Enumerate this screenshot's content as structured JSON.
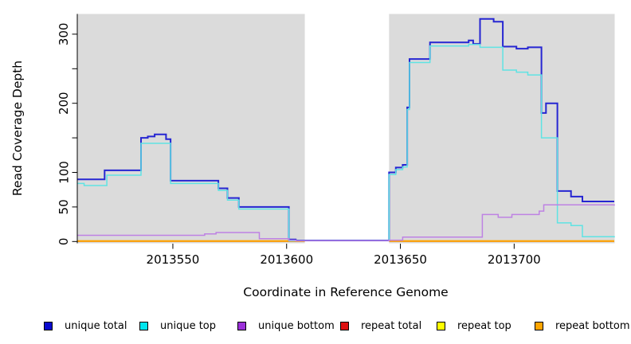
{
  "figure": {
    "background": "#ffffff",
    "plot_background": "#dbdbdb",
    "axis_color": "#000000"
  },
  "chart_data": {
    "type": "line",
    "subtype": "step-after-coverage-plot",
    "title": "",
    "xlabel": "Coordinate in Reference Genome",
    "ylabel": "Read Coverage Depth",
    "xlim": [
      2013508,
      2013744
    ],
    "ylim": [
      0,
      322
    ],
    "x_ticks": [
      2013550,
      2013600,
      2013650,
      2013700
    ],
    "x_tick_labels": [
      "2013550",
      "2013600",
      "2013650",
      "2013700"
    ],
    "y_ticks": [
      0,
      50,
      100,
      150,
      200,
      250,
      300
    ],
    "y_tick_labels": [
      "0",
      "50",
      "100",
      "",
      "200",
      "",
      "300"
    ],
    "grid": "off",
    "gap_region": {
      "start": 2013608,
      "end": 2013645,
      "color": "#ffffff"
    },
    "legend_position": "bottom",
    "series": [
      {
        "name": "unique total",
        "color": "#2626D2",
        "legend_color": "#0A0ACF",
        "line_width": 2,
        "points": [
          [
            2013508,
            90
          ],
          [
            2013520,
            103
          ],
          [
            2013536,
            150
          ],
          [
            2013539,
            152
          ],
          [
            2013542,
            155
          ],
          [
            2013547,
            148
          ],
          [
            2013549,
            88
          ],
          [
            2013570,
            77
          ],
          [
            2013574,
            63
          ],
          [
            2013579,
            50
          ],
          [
            2013601,
            3
          ],
          [
            2013604,
            1.5
          ],
          [
            2013645,
            100
          ],
          [
            2013648,
            107
          ],
          [
            2013651,
            111
          ],
          [
            2013653,
            194
          ],
          [
            2013654,
            264
          ],
          [
            2013663,
            288
          ],
          [
            2013680,
            291
          ],
          [
            2013682,
            286
          ],
          [
            2013685,
            322
          ],
          [
            2013691,
            318
          ],
          [
            2013695,
            282
          ],
          [
            2013701,
            279
          ],
          [
            2013706,
            281
          ],
          [
            2013712,
            186
          ],
          [
            2013714,
            200
          ],
          [
            2013719,
            73
          ],
          [
            2013725,
            65
          ],
          [
            2013730,
            58
          ],
          [
            2013744,
            58
          ]
        ]
      },
      {
        "name": "unique top",
        "color": "#5FE3E3",
        "legend_color": "#00E5EE",
        "line_width": 1.5,
        "points": [
          [
            2013508,
            84
          ],
          [
            2013511,
            81
          ],
          [
            2013521,
            96
          ],
          [
            2013536,
            142
          ],
          [
            2013549,
            84
          ],
          [
            2013570,
            74
          ],
          [
            2013574,
            60
          ],
          [
            2013579,
            47
          ],
          [
            2013601,
            1
          ],
          [
            2013645,
            97
          ],
          [
            2013648,
            104
          ],
          [
            2013651,
            108
          ],
          [
            2013653,
            191
          ],
          [
            2013654,
            259
          ],
          [
            2013663,
            283
          ],
          [
            2013680,
            285
          ],
          [
            2013685,
            281
          ],
          [
            2013695,
            248
          ],
          [
            2013701,
            245
          ],
          [
            2013706,
            241
          ],
          [
            2013712,
            150
          ],
          [
            2013719,
            27
          ],
          [
            2013725,
            23
          ],
          [
            2013730,
            7
          ],
          [
            2013744,
            6
          ]
        ]
      },
      {
        "name": "unique bottom",
        "color": "#BE82E3",
        "legend_color": "#9B30D9",
        "line_width": 1.5,
        "points": [
          [
            2013508,
            9
          ],
          [
            2013564,
            11
          ],
          [
            2013569,
            13
          ],
          [
            2013588,
            4
          ],
          [
            2013601,
            2
          ],
          [
            2013604,
            1
          ],
          [
            2013645,
            2
          ],
          [
            2013651,
            6.5
          ],
          [
            2013686,
            39
          ],
          [
            2013693,
            35
          ],
          [
            2013699,
            39
          ],
          [
            2013711,
            44
          ],
          [
            2013713,
            53
          ],
          [
            2013744,
            52
          ]
        ]
      },
      {
        "name": "repeat total",
        "color": "#DD1111",
        "legend_color": "#DD1111",
        "line_width": 1.5,
        "points": [
          [
            2013508,
            0.3
          ],
          [
            2013744,
            0.3
          ]
        ]
      },
      {
        "name": "repeat top",
        "color": "#FFFF00",
        "legend_color": "#FFFF00",
        "line_width": 1.5,
        "points": [
          [
            2013508,
            0.5
          ],
          [
            2013744,
            0.5
          ]
        ]
      },
      {
        "name": "repeat bottom",
        "color": "#FFA500",
        "legend_color": "#FFA500",
        "line_width": 2,
        "points": [
          [
            2013508,
            0.8
          ],
          [
            2013744,
            0.8
          ]
        ]
      }
    ]
  }
}
